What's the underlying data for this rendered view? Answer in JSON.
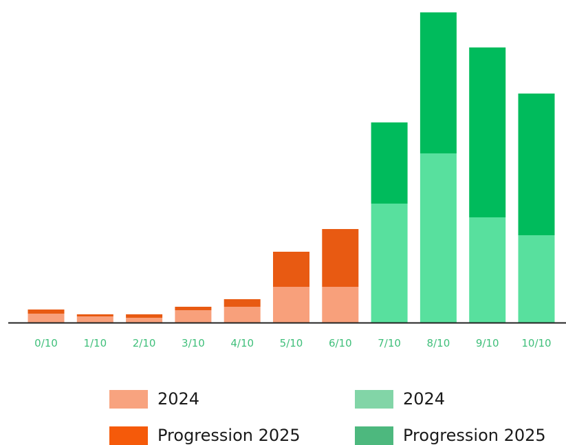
{
  "chart_data": {
    "type": "bar",
    "stacked": true,
    "categories": [
      "0/10",
      "1/10",
      "2/10",
      "3/10",
      "4/10",
      "5/10",
      "6/10",
      "7/10",
      "8/10",
      "9/10",
      "10/10"
    ],
    "series": [
      {
        "name": "2024",
        "values": [
          13,
          9,
          7,
          18,
          23,
          52,
          52,
          173,
          246,
          153,
          127
        ]
      },
      {
        "name": "Progression 2025",
        "values": [
          6,
          3,
          5,
          5,
          11,
          51,
          84,
          118,
          205,
          247,
          206
        ]
      }
    ],
    "colors": {
      "orange_2024": "#F8A07B",
      "orange_2025": "#E85A12",
      "green_2024": "#58E09E",
      "green_2025": "#00BB5C",
      "tick_label": "#3FBF7A",
      "axis": "#222222"
    },
    "green_from_index": 7,
    "ylim": [
      0,
      460
    ],
    "grid": false,
    "legend": {
      "placement": "bottom",
      "items": [
        {
          "label": "2024",
          "color": "#F8A37F"
        },
        {
          "label": "2024",
          "color": "#82D5A7"
        },
        {
          "label": "Progression 2025",
          "color": "#F55A0A"
        },
        {
          "label": "Progression 2025",
          "color": "#4DB87E"
        }
      ]
    }
  }
}
